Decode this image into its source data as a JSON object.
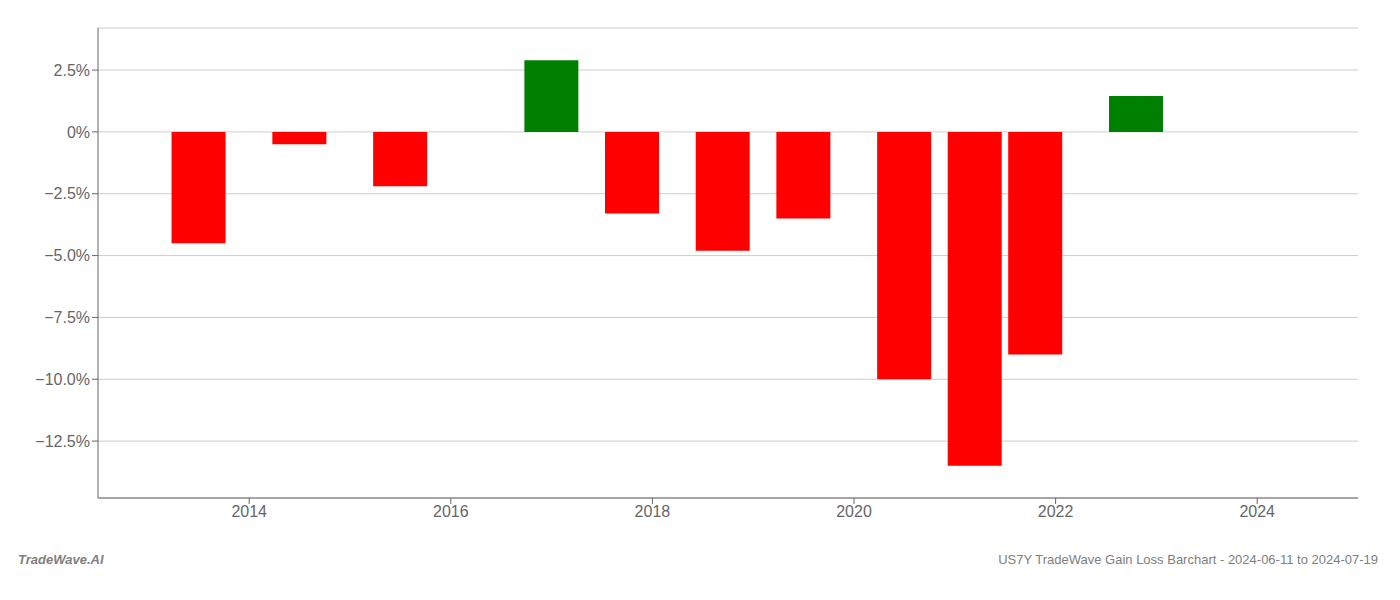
{
  "chart_data": {
    "type": "bar",
    "x": [
      2013.5,
      2014.5,
      2015.5,
      2017.0,
      2017.8,
      2018.7,
      2019.5,
      2020.5,
      2021.2,
      2021.8,
      2022.8
    ],
    "values": [
      -4.5,
      -0.5,
      -2.2,
      2.9,
      -3.3,
      -4.8,
      -3.5,
      -10.0,
      -13.5,
      -9.0,
      1.45
    ],
    "colors": [
      "#ff0000",
      "#ff0000",
      "#ff0000",
      "#008000",
      "#ff0000",
      "#ff0000",
      "#ff0000",
      "#ff0000",
      "#ff0000",
      "#ff0000",
      "#008000"
    ],
    "xlim": [
      2012.5,
      2025.0
    ],
    "xticks": [
      2014,
      2016,
      2018,
      2020,
      2022,
      2024
    ],
    "ylim": [
      -14.8,
      4.2
    ],
    "yticks": [
      {
        "value": 2.5,
        "label": "2.5%"
      },
      {
        "value": 0.0,
        "label": "0%"
      },
      {
        "value": -2.5,
        "label": "−2.5%"
      },
      {
        "value": -5.0,
        "label": "−5.0%"
      },
      {
        "value": -7.5,
        "label": "−7.5%"
      },
      {
        "value": -10.0,
        "label": "−10.0%"
      },
      {
        "value": -12.5,
        "label": "−12.5%"
      }
    ],
    "grid": "y",
    "annotations": [
      "TradeWave.AI",
      "US7Y TradeWave Gain Loss Barchart - 2024-06-11 to 2024-07-19"
    ]
  }
}
